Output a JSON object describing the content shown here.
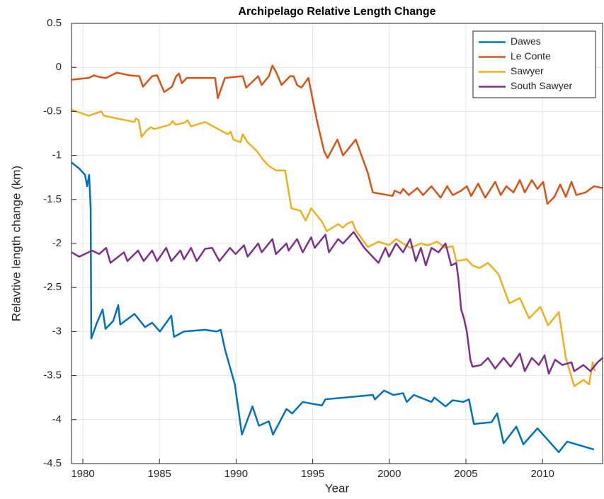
{
  "chart_data": {
    "type": "line",
    "title": "Archipelago Relative Length Change",
    "x_label": "Year",
    "y_label": "Relavtive length change (km)",
    "xlim": [
      1979.26,
      2013.92
    ],
    "xticks": [
      1980,
      1985,
      1990,
      1995,
      2000,
      2005,
      2010
    ],
    "ylim": [
      -4.5,
      0.5
    ],
    "yticks": [
      -4.5,
      -4,
      -3.5,
      -3,
      -2.5,
      -2,
      -1.5,
      -1,
      -0.5,
      0,
      0.5
    ],
    "grid": true,
    "legend": "northeast",
    "series": [
      {
        "name": "Dawes",
        "color": "#0072BD",
        "x": [
          1979.26,
          1979.77,
          1980.14,
          1980.28,
          1980.41,
          1980.51,
          1980.55,
          1980.92,
          1981.29,
          1981.48,
          1981.98,
          1982.31,
          1982.44,
          1983.37,
          1984.06,
          1984.52,
          1985.03,
          1985.77,
          1985.95,
          1986.6,
          1987.98,
          1988.72,
          1989.0,
          1989.27,
          1989.92,
          1990.38,
          1991.07,
          1991.49,
          1992.14,
          1992.41,
          1993.29,
          1993.66,
          1994.35,
          1995.6,
          1995.83,
          1998.92,
          1999.06,
          1999.66,
          2000.26,
          2000.9,
          2001.14,
          2001.6,
          2002.75,
          2002.94,
          2003.67,
          2004.14,
          2004.83,
          2005.2,
          2005.52,
          2006.67,
          2007.04,
          2007.46,
          2008.29,
          2008.75,
          2009.67,
          2011.06,
          2011.61,
          2013.36
        ],
        "values": [
          -1.08,
          -1.15,
          -1.22,
          -1.35,
          -1.22,
          -1.6,
          -3.08,
          -2.9,
          -2.75,
          -2.97,
          -2.88,
          -2.7,
          -2.92,
          -2.8,
          -2.95,
          -2.9,
          -3.0,
          -2.82,
          -3.06,
          -3.0,
          -2.98,
          -3.0,
          -2.98,
          -3.2,
          -3.6,
          -4.17,
          -3.85,
          -4.07,
          -4.02,
          -4.17,
          -3.88,
          -3.93,
          -3.8,
          -3.84,
          -3.77,
          -3.72,
          -3.77,
          -3.67,
          -3.72,
          -3.7,
          -3.8,
          -3.72,
          -3.8,
          -3.75,
          -3.85,
          -3.78,
          -3.8,
          -3.77,
          -4.05,
          -4.03,
          -3.93,
          -4.27,
          -4.08,
          -4.28,
          -4.1,
          -4.37,
          -4.25,
          -4.34
        ]
      },
      {
        "name": "Le Conte",
        "color": "#D95319",
        "x": [
          1979.26,
          1980.37,
          1980.74,
          1981.06,
          1981.52,
          1982.21,
          1983.04,
          1983.69,
          1983.92,
          1984.52,
          1984.84,
          1985.31,
          1985.81,
          1986.09,
          1986.27,
          1986.46,
          1986.78,
          1987.29,
          1988.63,
          1988.81,
          1989.27,
          1990.43,
          1990.66,
          1991.44,
          1991.67,
          1992.14,
          1992.37,
          1992.6,
          1992.97,
          1993.52,
          1993.75,
          1993.98,
          1994.26,
          1994.72,
          1995.27,
          1995.74,
          1995.97,
          1996.61,
          1996.98,
          1997.81,
          1998.6,
          1998.92,
          2000.21,
          2000.35,
          2000.72,
          2000.9,
          2001.27,
          2001.83,
          2002.2,
          2002.75,
          2002.98,
          2003.35,
          2003.77,
          2004.14,
          2004.69,
          2005.06,
          2005.34,
          2005.8,
          2006.26,
          2006.91,
          2007.27,
          2007.64,
          2008.1,
          2008.52,
          2008.84,
          2009.3,
          2009.67,
          2010.04,
          2010.32,
          2010.78,
          2011.15,
          2011.52,
          2011.89,
          2012.21,
          2012.81,
          2013.36,
          2013.92
        ],
        "values": [
          -0.14,
          -0.12,
          -0.09,
          -0.11,
          -0.12,
          -0.06,
          -0.09,
          -0.1,
          -0.22,
          -0.1,
          -0.09,
          -0.28,
          -0.22,
          -0.1,
          -0.07,
          -0.18,
          -0.12,
          -0.12,
          -0.12,
          -0.35,
          -0.12,
          -0.1,
          -0.23,
          -0.1,
          -0.2,
          -0.1,
          0.02,
          -0.05,
          -0.2,
          -0.1,
          -0.1,
          -0.2,
          -0.23,
          -0.12,
          -0.6,
          -0.95,
          -1.03,
          -0.82,
          -1.0,
          -0.82,
          -1.2,
          -1.42,
          -1.46,
          -1.4,
          -1.43,
          -1.38,
          -1.45,
          -1.37,
          -1.45,
          -1.35,
          -1.4,
          -1.48,
          -1.35,
          -1.45,
          -1.4,
          -1.35,
          -1.46,
          -1.32,
          -1.48,
          -1.3,
          -1.45,
          -1.35,
          -1.42,
          -1.28,
          -1.42,
          -1.28,
          -1.38,
          -1.3,
          -1.55,
          -1.47,
          -1.33,
          -1.47,
          -1.3,
          -1.45,
          -1.42,
          -1.35,
          -1.37
        ]
      },
      {
        "name": "Sawyer",
        "color": "#EDB120",
        "x": [
          1979.26,
          1980.37,
          1981.2,
          1981.38,
          1983.37,
          1983.46,
          1983.64,
          1983.83,
          1984.15,
          1984.43,
          1984.66,
          1985.31,
          1985.67,
          1985.86,
          1986.04,
          1986.6,
          1986.83,
          1987.06,
          1987.98,
          1989.14,
          1989.46,
          1989.64,
          1989.83,
          1990.29,
          1990.43,
          1990.75,
          1991.35,
          1991.77,
          1992.14,
          1992.6,
          1993.2,
          1993.61,
          1994.21,
          1994.54,
          1994.9,
          1995.6,
          1995.92,
          1996.66,
          1996.98,
          1997.21,
          1997.58,
          1997.81,
          1998.6,
          1999.29,
          1999.98,
          2000.44,
          2000.9,
          2001.36,
          2002.06,
          2002.52,
          2003.12,
          2003.67,
          2004.14,
          2004.37,
          2005.06,
          2005.43,
          2005.89,
          2006.44,
          2007.13,
          2007.83,
          2008.52,
          2009.12,
          2009.86,
          2010.36,
          2011.06,
          2011.52,
          2012.07,
          2012.67,
          2013.04,
          2013.27,
          2013.41
        ],
        "values": [
          -0.48,
          -0.55,
          -0.5,
          -0.55,
          -0.62,
          -0.58,
          -0.6,
          -0.79,
          -0.72,
          -0.68,
          -0.7,
          -0.67,
          -0.65,
          -0.61,
          -0.65,
          -0.63,
          -0.6,
          -0.67,
          -0.62,
          -0.73,
          -0.76,
          -0.73,
          -0.82,
          -0.85,
          -0.76,
          -0.85,
          -0.95,
          -1.05,
          -1.12,
          -1.17,
          -1.17,
          -1.6,
          -1.63,
          -1.74,
          -1.6,
          -1.75,
          -1.86,
          -1.78,
          -1.82,
          -1.78,
          -1.75,
          -1.85,
          -2.04,
          -1.98,
          -2.02,
          -1.95,
          -2.0,
          -2.05,
          -2.0,
          -2.02,
          -1.98,
          -2.05,
          -2.03,
          -2.2,
          -2.18,
          -2.25,
          -2.28,
          -2.22,
          -2.35,
          -2.68,
          -2.62,
          -2.85,
          -2.72,
          -2.93,
          -2.78,
          -3.3,
          -3.62,
          -3.55,
          -3.6,
          -3.35,
          -3.45
        ]
      },
      {
        "name": "South Sawyer",
        "color": "#7E2F8E",
        "x": [
          1979.26,
          1979.77,
          1980.6,
          1981.06,
          1981.52,
          1981.8,
          1982.68,
          1982.91,
          1983.6,
          1983.97,
          1984.52,
          1984.84,
          1985.44,
          1985.77,
          1986.37,
          1986.6,
          1987.06,
          1987.43,
          1987.98,
          1988.44,
          1988.91,
          1989.6,
          1989.97,
          1990.52,
          1990.75,
          1991.44,
          1991.67,
          1992.37,
          1992.6,
          1993.29,
          1993.43,
          1993.98,
          1994.35,
          1994.9,
          1995.13,
          1995.83,
          1996.06,
          1996.66,
          1996.98,
          1997.67,
          1998.37,
          1999.29,
          1999.75,
          1999.98,
          2000.44,
          2000.9,
          2001.36,
          2001.73,
          2002.06,
          2002.38,
          2002.75,
          2003.21,
          2003.67,
          2004.04,
          2004.37,
          2004.51,
          2004.69,
          2004.87,
          2005.06,
          2005.29,
          2005.43,
          2005.98,
          2006.44,
          2006.91,
          2007.46,
          2007.92,
          2008.52,
          2008.84,
          2009.3,
          2009.76,
          2010.13,
          2010.41,
          2010.82,
          2011.29,
          2011.89,
          2012.07,
          2012.67,
          2013.13,
          2013.59,
          2013.92
        ],
        "values": [
          -2.1,
          -2.15,
          -2.08,
          -2.12,
          -2.05,
          -2.22,
          -2.1,
          -2.2,
          -2.08,
          -2.2,
          -2.08,
          -2.2,
          -2.05,
          -2.2,
          -2.08,
          -2.18,
          -2.05,
          -2.2,
          -2.06,
          -2.05,
          -2.2,
          -2.05,
          -2.12,
          -2.02,
          -2.15,
          -2.0,
          -2.1,
          -1.95,
          -2.12,
          -2.0,
          -2.08,
          -1.95,
          -2.1,
          -1.93,
          -2.05,
          -1.9,
          -2.1,
          -1.95,
          -2.0,
          -1.87,
          -2.05,
          -2.22,
          -2.05,
          -2.15,
          -2.0,
          -2.1,
          -1.95,
          -2.2,
          -2.05,
          -2.25,
          -2.05,
          -2.1,
          -2.0,
          -2.25,
          -2.22,
          -2.4,
          -2.75,
          -2.85,
          -3.0,
          -3.32,
          -3.4,
          -3.38,
          -3.3,
          -3.42,
          -3.3,
          -3.4,
          -3.25,
          -3.45,
          -3.3,
          -3.38,
          -3.27,
          -3.48,
          -3.32,
          -3.38,
          -3.35,
          -3.45,
          -3.38,
          -3.45,
          -3.35,
          -3.3
        ]
      }
    ]
  }
}
